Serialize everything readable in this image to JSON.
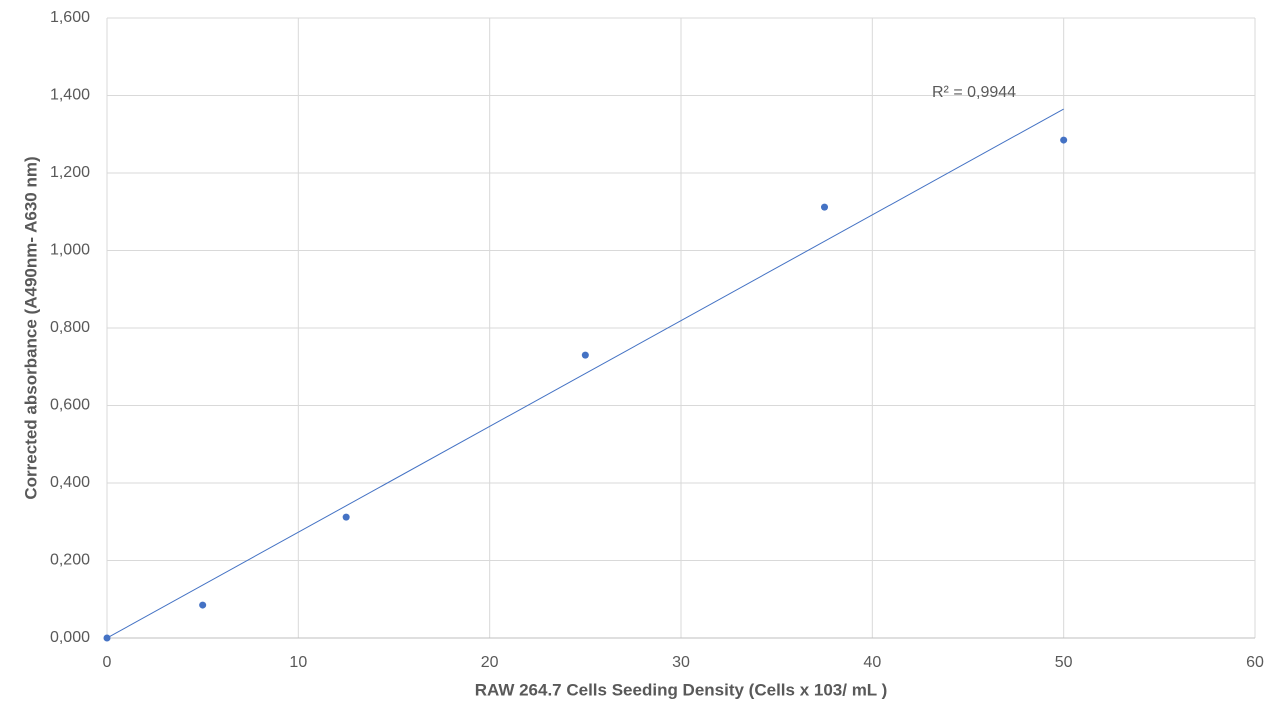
{
  "chart_data": {
    "type": "scatter",
    "x_label": "RAW 264.7 Cells Seeding Density (Cells x 103/ mL )",
    "y_label": "Corrected absorbance  (A490nm- A630 nm)",
    "annotation": "R² = 0,9944",
    "x": [
      0,
      5,
      12.5,
      25,
      37.5,
      50
    ],
    "series": [
      {
        "color": "#4472c4",
        "values": [
          0,
          0.085,
          0.312,
          0.73,
          1.112,
          1.285
        ]
      }
    ],
    "trendline": {
      "color": "#4472c4",
      "x": [
        0,
        50
      ],
      "values": [
        0,
        1.365
      ]
    },
    "xlim": [
      0,
      60
    ],
    "xticks": [
      0,
      10,
      20,
      30,
      40,
      50,
      60
    ],
    "ylim": [
      0,
      1.6
    ],
    "yticks": [
      {
        "value": 0,
        "label": "0,000"
      },
      {
        "value": 0.2,
        "label": "0,200"
      },
      {
        "value": 0.4,
        "label": "0,400"
      },
      {
        "value": 0.6,
        "label": "0,600"
      },
      {
        "value": 0.8,
        "label": "0,800"
      },
      {
        "value": 1.0,
        "label": "1,000"
      },
      {
        "value": 1.2,
        "label": "1,200"
      },
      {
        "value": 1.4,
        "label": "1,400"
      },
      {
        "value": 1.6,
        "label": "1,600"
      }
    ],
    "grid": true
  }
}
